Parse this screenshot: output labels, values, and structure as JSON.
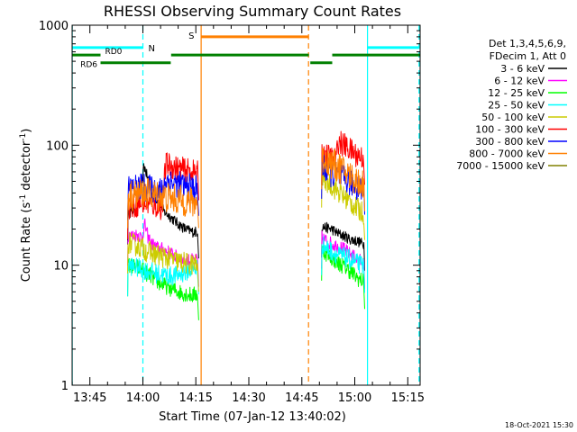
{
  "chart_data": {
    "type": "line",
    "title": "RHESSI Observing Summary Count Rates",
    "xlabel": "Start Time (07-Jan-12 13:40:02)",
    "ylabel_base": "Count Rate (s",
    "ylabel_sup": "-1",
    "ylabel_mid": " detector",
    "ylabel_sup2": "-1",
    "ylabel_end": ")",
    "y_scale": "log",
    "ylim": [
      1,
      1000
    ],
    "y_ticks": [
      1,
      10,
      100,
      1000
    ],
    "y_tick_labels": [
      "1",
      "10",
      "100",
      "1000"
    ],
    "xlim_minutes": [
      -0.03,
      98.5
    ],
    "x_ticks": [
      {
        "minutes": 5,
        "label": "13:45"
      },
      {
        "minutes": 20,
        "label": "14:00"
      },
      {
        "minutes": 35,
        "label": "14:15"
      },
      {
        "minutes": 50,
        "label": "14:30"
      },
      {
        "minutes": 65,
        "label": "14:45"
      },
      {
        "minutes": 80,
        "label": "15:00"
      },
      {
        "minutes": 95,
        "label": "15:15"
      }
    ],
    "legend_header": [
      "Det 1,3,4,5,6,9,",
      "FDecim 1, Att 0"
    ],
    "legend_position": "right",
    "series": [
      {
        "name": "3 - 6 keV",
        "color": "#000000",
        "segments": [
          {
            "start": 15.7,
            "points": [
              [
                15.8,
                27
              ],
              [
                16.8,
                28
              ],
              [
                17.8,
                30
              ],
              [
                18.8,
                32
              ],
              [
                19.8,
                46
              ],
              [
                20.3,
                68
              ],
              [
                21,
                58
              ],
              [
                22.5,
                40
              ],
              [
                24.5,
                34
              ],
              [
                26,
                28
              ],
              [
                28,
                25
              ],
              [
                30,
                22
              ],
              [
                32,
                20
              ],
              [
                34,
                19
              ],
              [
                35.6,
                19
              ]
            ],
            "end": 35.8
          },
          {
            "start": 70.6,
            "points": [
              [
                70.7,
                21
              ],
              [
                72,
                20.5
              ],
              [
                73.5,
                20
              ],
              [
                75,
                18.5
              ],
              [
                77,
                17.5
              ],
              [
                78.5,
                16.5
              ],
              [
                80.3,
                16
              ],
              [
                82.6,
                15
              ]
            ],
            "end": 82.8
          }
        ]
      },
      {
        "name": "6 - 12 keV",
        "color": "#ff00ff",
        "segments": [
          {
            "start": 15.7,
            "points": [
              [
                15.8,
                18
              ],
              [
                17,
                17.5
              ],
              [
                18.5,
                18
              ],
              [
                19.8,
                17
              ],
              [
                20.5,
                22
              ],
              [
                21.5,
                17
              ],
              [
                22.5,
                15
              ],
              [
                24,
                14
              ],
              [
                26,
                13.5
              ],
              [
                28,
                12.5
              ],
              [
                30,
                11.5
              ],
              [
                32,
                11
              ],
              [
                34,
                11
              ],
              [
                35.6,
                11
              ]
            ],
            "end": 35.8
          },
          {
            "start": 70.6,
            "points": [
              [
                70.7,
                17
              ],
              [
                72,
                16
              ],
              [
                73.5,
                15
              ],
              [
                75,
                14.5
              ],
              [
                77,
                13.5
              ],
              [
                78.5,
                12.5
              ],
              [
                80.3,
                11.5
              ],
              [
                82.6,
                10.5
              ]
            ],
            "end": 82.8
          }
        ]
      },
      {
        "name": "12 - 25 keV",
        "color": "#00ff00",
        "segments": [
          {
            "start": 15.7,
            "points": [
              [
                15.8,
                10
              ],
              [
                17,
                9.8
              ],
              [
                18.5,
                9.6
              ],
              [
                19.8,
                9.3
              ],
              [
                21,
                8.6
              ],
              [
                22.5,
                8
              ],
              [
                24,
                7.3
              ],
              [
                26,
                6.8
              ],
              [
                28,
                6.4
              ],
              [
                30,
                6
              ],
              [
                32,
                5.8
              ],
              [
                34,
                5.6
              ],
              [
                35.6,
                5.8
              ]
            ],
            "end": 35.8
          },
          {
            "start": 70.6,
            "points": [
              [
                70.7,
                13.5
              ],
              [
                72,
                12.5
              ],
              [
                73.5,
                11.5
              ],
              [
                75,
                10.5
              ],
              [
                77,
                9.8
              ],
              [
                78.5,
                9
              ],
              [
                80.3,
                8
              ],
              [
                82.6,
                7.2
              ]
            ],
            "end": 82.8
          }
        ]
      },
      {
        "name": "25 - 50 keV",
        "color": "#00ffff",
        "segments": [
          {
            "start": 15.7,
            "points": [
              [
                15.8,
                10
              ],
              [
                17,
                9.8
              ],
              [
                18.5,
                9.5
              ],
              [
                19.8,
                9.3
              ],
              [
                21,
                9
              ],
              [
                22.5,
                8.8
              ],
              [
                24,
                8.5
              ],
              [
                26,
                8.3
              ],
              [
                28,
                8.1
              ],
              [
                30,
                8.3
              ],
              [
                32,
                8.8
              ],
              [
                34,
                9.3
              ],
              [
                35.6,
                9.5
              ]
            ],
            "end": 35.8
          },
          {
            "start": 70.6,
            "points": [
              [
                70.7,
                15
              ],
              [
                72,
                14
              ],
              [
                73.5,
                13
              ],
              [
                75,
                12.2
              ],
              [
                77,
                11.7
              ],
              [
                78.5,
                11.2
              ],
              [
                80.3,
                10.5
              ],
              [
                82.6,
                9.8
              ]
            ],
            "end": 82.8
          }
        ]
      },
      {
        "name": "50 - 100 keV",
        "color": "#cccc00",
        "segments": [
          {
            "start": 15.7,
            "points": [
              [
                15.8,
                15.5
              ],
              [
                17,
                15
              ],
              [
                18.5,
                14.5
              ],
              [
                19.8,
                14
              ],
              [
                21,
                13.2
              ],
              [
                22.5,
                12.7
              ],
              [
                24,
                12.2
              ],
              [
                26,
                11.7
              ],
              [
                28,
                11.2
              ],
              [
                30,
                10.7
              ],
              [
                32,
                10.4
              ],
              [
                34,
                10.2
              ],
              [
                35.6,
                10
              ]
            ],
            "end": 35.8
          },
          {
            "start": 70.6,
            "points": [
              [
                70.7,
                55
              ],
              [
                72,
                50
              ],
              [
                73.5,
                46
              ],
              [
                75,
                42
              ],
              [
                77,
                37
              ],
              [
                78.5,
                34
              ],
              [
                80.3,
                30
              ],
              [
                82.6,
                27
              ]
            ],
            "end": 82.8
          }
        ]
      },
      {
        "name": "100 - 300 keV",
        "color": "#ff0000",
        "segments": [
          {
            "start": 15.7,
            "points": [
              [
                15.8,
                30
              ],
              [
                17,
                31
              ],
              [
                18.5,
                32
              ],
              [
                19.8,
                33
              ],
              [
                21,
                33
              ],
              [
                22.5,
                32
              ],
              [
                24,
                31
              ],
              [
                25.5,
                30
              ],
              [
                26.5,
                70
              ],
              [
                28,
                67
              ],
              [
                30,
                64
              ],
              [
                32,
                62
              ],
              [
                34,
                60
              ],
              [
                35.6,
                58
              ]
            ],
            "end": 35.8
          },
          {
            "start": 70.6,
            "points": [
              [
                70.7,
                85
              ],
              [
                72,
                82
              ],
              [
                73.5,
                78
              ],
              [
                74.8,
                75
              ],
              [
                75.2,
                108
              ],
              [
                77,
                100
              ],
              [
                78.5,
                92
              ],
              [
                80.3,
                84
              ],
              [
                82.6,
                78
              ]
            ],
            "end": 82.8
          }
        ]
      },
      {
        "name": "300 - 800 keV",
        "color": "#0000ff",
        "segments": [
          {
            "start": 15.7,
            "points": [
              [
                15.8,
                43
              ],
              [
                17,
                44
              ],
              [
                18.5,
                45
              ],
              [
                19.8,
                45
              ],
              [
                21,
                44
              ],
              [
                22.5,
                43
              ],
              [
                24,
                42
              ],
              [
                25.5,
                41
              ],
              [
                26.5,
                52
              ],
              [
                28,
                49
              ],
              [
                30,
                47
              ],
              [
                32,
                45
              ],
              [
                34,
                44
              ],
              [
                35.6,
                43
              ]
            ],
            "end": 35.8
          },
          {
            "start": 70.6,
            "points": [
              [
                70.7,
                65
              ],
              [
                72,
                62
              ],
              [
                73.5,
                58
              ],
              [
                75,
                55
              ],
              [
                77,
                52
              ],
              [
                78.5,
                49
              ],
              [
                80.3,
                46
              ],
              [
                82.6,
                44
              ]
            ],
            "end": 82.8
          }
        ]
      },
      {
        "name": "800 - 7000 keV",
        "color": "#ff8000",
        "segments": [
          {
            "start": 15.7,
            "points": [
              [
                15.8,
                37
              ],
              [
                17,
                38
              ],
              [
                18.5,
                39
              ],
              [
                19.8,
                40
              ],
              [
                21,
                40
              ],
              [
                22.5,
                39
              ],
              [
                24,
                38
              ],
              [
                26,
                37
              ],
              [
                28,
                36
              ],
              [
                30,
                35
              ],
              [
                32,
                34
              ],
              [
                34,
                33
              ],
              [
                35.6,
                34
              ]
            ],
            "end": 35.8
          },
          {
            "start": 70.6,
            "points": [
              [
                70.7,
                78
              ],
              [
                72,
                74
              ],
              [
                73.5,
                70
              ],
              [
                75,
                66
              ],
              [
                77,
                61
              ],
              [
                78.5,
                56
              ],
              [
                80.3,
                51
              ],
              [
                82.6,
                47
              ]
            ],
            "end": 82.8
          }
        ]
      },
      {
        "name": "7000 - 15000 keV",
        "color": "#808000",
        "segments": []
      }
    ],
    "annotations": {
      "spacecraft_night": {
        "label": "N",
        "color": "#00ffff",
        "level": 650,
        "intervals": [
          [
            0,
            20
          ],
          [
            83.6,
            98.2
          ]
        ],
        "start_markers": [
          0,
          83.6
        ],
        "end_markers": [
          20,
          98.2
        ]
      },
      "saa": {
        "label": "S",
        "color": "#ff8000",
        "level": 800,
        "intervals": [
          [
            36.5,
            66.9
          ]
        ],
        "start_markers": [
          36.5
        ],
        "end_markers": [
          66.9
        ]
      },
      "decimation_rd0": {
        "label": "RD0",
        "color": "#008000",
        "level": 565,
        "intervals": [
          [
            0,
            8
          ],
          [
            28,
            67
          ],
          [
            73.6,
            98.5
          ]
        ]
      },
      "decimation_rd6": {
        "label": "RD6",
        "color": "#008000",
        "level": 487,
        "intervals": [
          [
            8,
            27.9
          ],
          [
            67.4,
            73.6
          ]
        ]
      }
    }
  },
  "footer_date": "18-Oct-2021 15:30"
}
